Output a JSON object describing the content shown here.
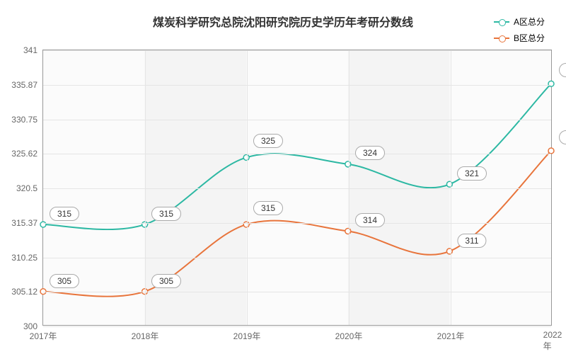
{
  "chart": {
    "type": "line",
    "title": "煤炭科学研究总院沈阳研究院历史学历年考研分数线",
    "title_fontsize": 16,
    "title_color": "#333333",
    "background_color": "#ffffff",
    "plot_banded_bg": true,
    "band_colors": [
      "#fbfbfb",
      "#f4f4f4"
    ],
    "plot_border_color": "#999999",
    "grid_color": "#e5e5e5",
    "label_fontsize": 12,
    "xlim": [
      2017,
      2022
    ],
    "ylim": [
      300,
      341
    ],
    "y_ticks": [
      300,
      305.12,
      310.25,
      315.37,
      320.5,
      325.62,
      330.75,
      335.87,
      341
    ],
    "x_categories": [
      "2017年",
      "2018年",
      "2019年",
      "2020年",
      "2021年",
      "2022年"
    ],
    "legend_position": "top-right",
    "smooth": true,
    "series": [
      {
        "name": "A区总分",
        "color": "#2cb8a3",
        "line_width": 2,
        "marker": "circle",
        "marker_fill": "#ffffff",
        "marker_size": 8,
        "values": [
          315,
          315,
          325,
          324,
          321,
          336
        ],
        "label_offset_x": [
          30,
          30,
          30,
          30,
          30,
          30
        ],
        "label_offset_y": [
          -4,
          -4,
          -12,
          -5,
          -4,
          -8
        ]
      },
      {
        "name": "B区总分",
        "color": "#e8743b",
        "line_width": 2,
        "marker": "circle",
        "marker_fill": "#ffffff",
        "marker_size": 8,
        "values": [
          305,
          305,
          315,
          314,
          311,
          326
        ],
        "label_offset_x": [
          30,
          30,
          30,
          30,
          30,
          30
        ],
        "label_offset_y": [
          -4,
          -4,
          -12,
          -5,
          -4,
          -8
        ]
      }
    ]
  }
}
